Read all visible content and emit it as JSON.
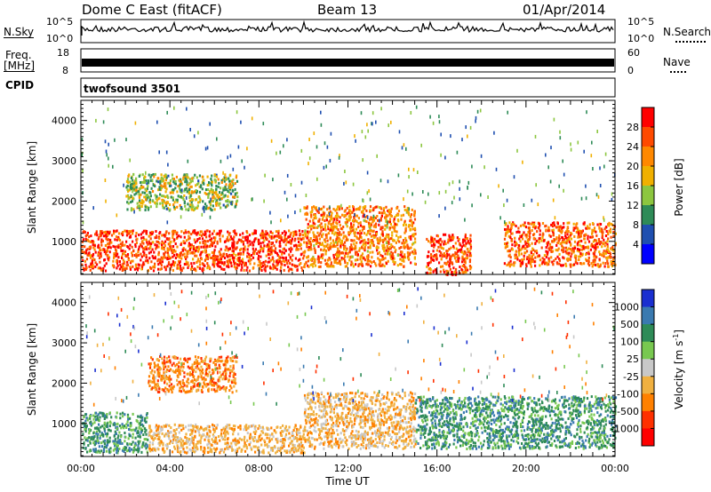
{
  "header": {
    "station": "Dome C East (fitACF)",
    "beam": "Beam 13",
    "date": "01/Apr/2014"
  },
  "noise_panel": {
    "left_label": "N.Sky",
    "left_ticks": [
      "10^5",
      "10^0"
    ],
    "right_label": "N.Search",
    "right_ticks": [
      "10^5",
      "10^0"
    ]
  },
  "freq_panel": {
    "left_label_line1": "Freq.",
    "left_label_line2": "[MHz]",
    "left_ticks": [
      "18",
      "8"
    ],
    "right_label": "Nave",
    "right_ticks": [
      "60",
      "0"
    ]
  },
  "cpid_panel": {
    "label": "CPID",
    "program": "twofsound 3501"
  },
  "chart_data": [
    {
      "type": "heatmap",
      "title": "",
      "parameter": "Power",
      "colorbar_label": "Power [dB]",
      "colorbar_ticks": [
        4,
        8,
        12,
        16,
        20,
        24,
        28
      ],
      "colorbar_range": [
        0,
        32
      ],
      "colors": [
        "#0000ff",
        "#1f4fb0",
        "#2e8b57",
        "#8cc63f",
        "#f0b000",
        "#ff8800",
        "#ff4a00",
        "#ff0000"
      ],
      "ylabel": "Slant Range [km]",
      "yticks": [
        1000,
        2000,
        3000,
        4000
      ],
      "ylim": [
        180,
        4500
      ],
      "xlim": [
        0,
        24
      ],
      "regions": [
        {
          "t0": 0,
          "t1": 10,
          "r0": 300,
          "r1": 1300,
          "level": 28
        },
        {
          "t0": 10,
          "t1": 15,
          "r0": 400,
          "r1": 1900,
          "level": 24
        },
        {
          "t0": 15.5,
          "t1": 17.5,
          "r0": 200,
          "r1": 1200,
          "level": 28
        },
        {
          "t0": 19,
          "t1": 24,
          "r0": 400,
          "r1": 1500,
          "level": 26
        },
        {
          "t0": 2,
          "t1": 7,
          "r0": 1800,
          "r1": 2700,
          "level": 16
        }
      ]
    },
    {
      "type": "heatmap",
      "title": "",
      "parameter": "Velocity",
      "colorbar_label": "Velocity [m s^-1]",
      "colorbar_ticks": [
        1000,
        500,
        100,
        25,
        -25,
        -100,
        -500,
        -1000
      ],
      "colors": [
        "#1a2fd0",
        "#3a7ab0",
        "#2e8b57",
        "#78c850",
        "#c8c8c8",
        "#f0b040",
        "#ff8000",
        "#ff3000",
        "#ff0000"
      ],
      "ylabel": "Slant Range [km]",
      "yticks": [
        1000,
        2000,
        3000,
        4000
      ],
      "ylim": [
        180,
        4500
      ],
      "xlim": [
        0,
        24
      ],
      "regions": [
        {
          "t0": 0,
          "t1": 3,
          "r0": 300,
          "r1": 1300,
          "level": 100
        },
        {
          "t0": 3,
          "t1": 10,
          "r0": 300,
          "r1": 1000,
          "level": -100
        },
        {
          "t0": 10,
          "t1": 15,
          "r0": 400,
          "r1": 1800,
          "level": -100
        },
        {
          "t0": 15,
          "t1": 24,
          "r0": 400,
          "r1": 1700,
          "level": 100
        },
        {
          "t0": 3,
          "t1": 7,
          "r0": 1800,
          "r1": 2700,
          "level": -500
        }
      ]
    }
  ],
  "x_axis": {
    "label": "Time UT",
    "ticks": [
      "00:00",
      "04:00",
      "08:00",
      "12:00",
      "16:00",
      "20:00",
      "00:00"
    ]
  }
}
